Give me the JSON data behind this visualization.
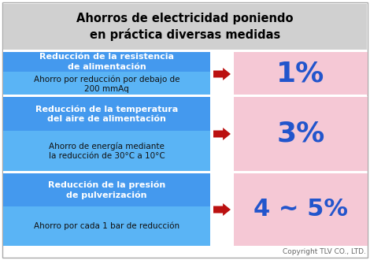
{
  "title": "Ahorros de electricidad poniendo\nen práctica diversas medidas",
  "title_bg": "#d0d0d0",
  "title_fontsize": 10.5,
  "title_color": "#000000",
  "title_fontweight": "bold",
  "rows": [
    {
      "header": "Reducción de la presión\nde pulverización",
      "subtext": "Ahorro por cada 1 bar de reducción",
      "value": "4 ~ 5%",
      "value_fontsize": 22
    },
    {
      "header": "Reducción de la temperatura\ndel aire de alimentación",
      "subtext": "Ahorro de energía mediante\nla reducción de 30°C a 10°C",
      "value": "3%",
      "value_fontsize": 26
    },
    {
      "header": "Reducción de la resistencia\nde alimentación",
      "subtext": "Ahorro por reducción por debajo de\n200 mmAq",
      "value": "1%",
      "value_fontsize": 26
    }
  ],
  "left_bg": "#5ab4f5",
  "left_header_bg": "#4499ee",
  "right_bg": "#f5c8d5",
  "arrow_color": "#bb1111",
  "header_text_color": "#ffffff",
  "subtext_color": "#111111",
  "value_color": "#2255cc",
  "copyright": "Copyright TLV CO., LTD.",
  "fig_bg": "#ffffff",
  "border_color": "#aaaaaa",
  "gap_color": "#ffffff"
}
